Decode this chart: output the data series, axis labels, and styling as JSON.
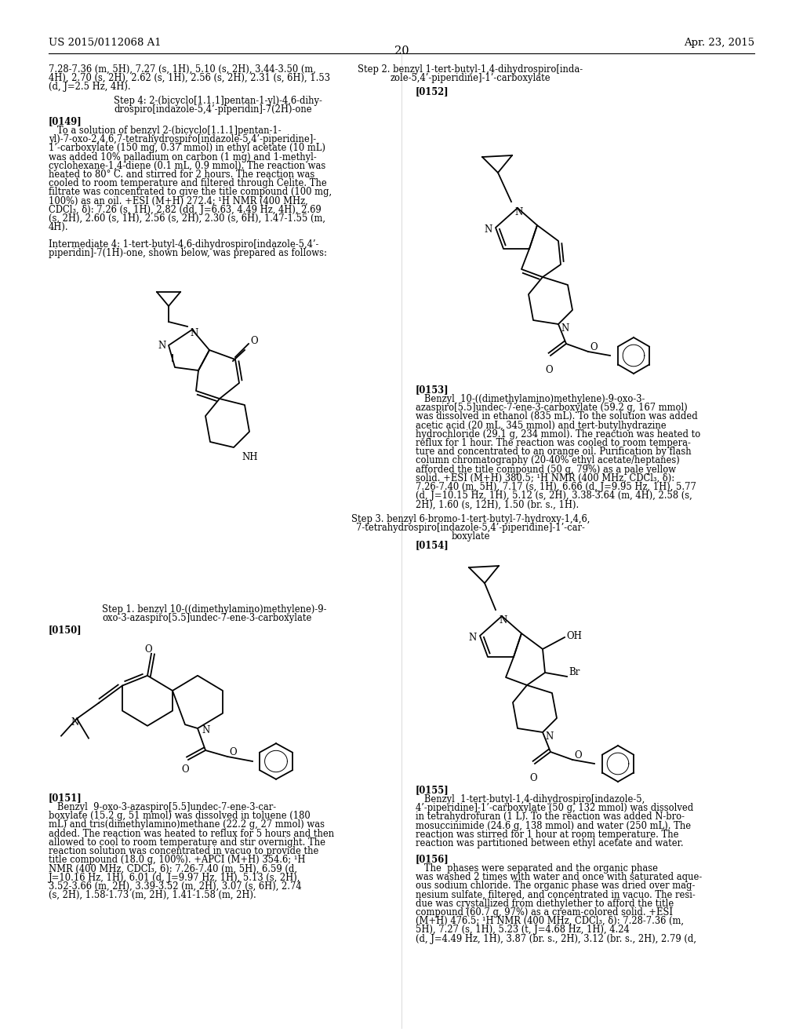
{
  "page_number": "20",
  "patent_number": "US 2015/0112068 A1",
  "patent_date": "Apr. 23, 2015",
  "background_color": "#ffffff",
  "text_color": "#000000",
  "fs": 8.3,
  "fs_bold": 8.3,
  "fs_header": 9.5,
  "fs_page": 10.5
}
